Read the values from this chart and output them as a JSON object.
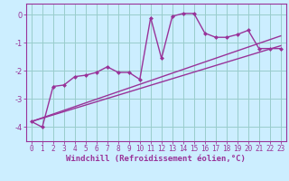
{
  "background_color": "#cceeff",
  "grid_color": "#99cccc",
  "line_color": "#993399",
  "marker": "D",
  "markersize": 2.5,
  "linewidth": 1.0,
  "xlabel": "Windchill (Refroidissement éolien,°C)",
  "xlim": [
    -0.5,
    23.5
  ],
  "ylim": [
    -4.5,
    0.4
  ],
  "yticks": [
    0,
    -1,
    -2,
    -3,
    -4
  ],
  "xticks": [
    0,
    1,
    2,
    3,
    4,
    5,
    6,
    7,
    8,
    9,
    10,
    11,
    12,
    13,
    14,
    15,
    16,
    17,
    18,
    19,
    20,
    21,
    22,
    23
  ],
  "series1_x": [
    0,
    1,
    2,
    3,
    4,
    5,
    6,
    7,
    8,
    9,
    10,
    11,
    12,
    13,
    14,
    15,
    16,
    17,
    18,
    19,
    20,
    21,
    22,
    23
  ],
  "series1_y": [
    -3.8,
    -4.0,
    -2.55,
    -2.5,
    -2.2,
    -2.15,
    -2.05,
    -1.85,
    -2.05,
    -2.05,
    -2.3,
    -0.1,
    -1.55,
    -0.05,
    0.05,
    0.05,
    -0.65,
    -0.8,
    -0.8,
    -0.7,
    -0.55,
    -1.2,
    -1.2,
    -1.2
  ],
  "series2_x": [
    0,
    23
  ],
  "series2_y": [
    -3.8,
    -1.1
  ],
  "series3_x": [
    0,
    23
  ],
  "series3_y": [
    -3.8,
    -0.75
  ],
  "xlabel_fontsize": 6.5,
  "tick_fontsize": 5.5,
  "ylabel_fontsize": 6
}
